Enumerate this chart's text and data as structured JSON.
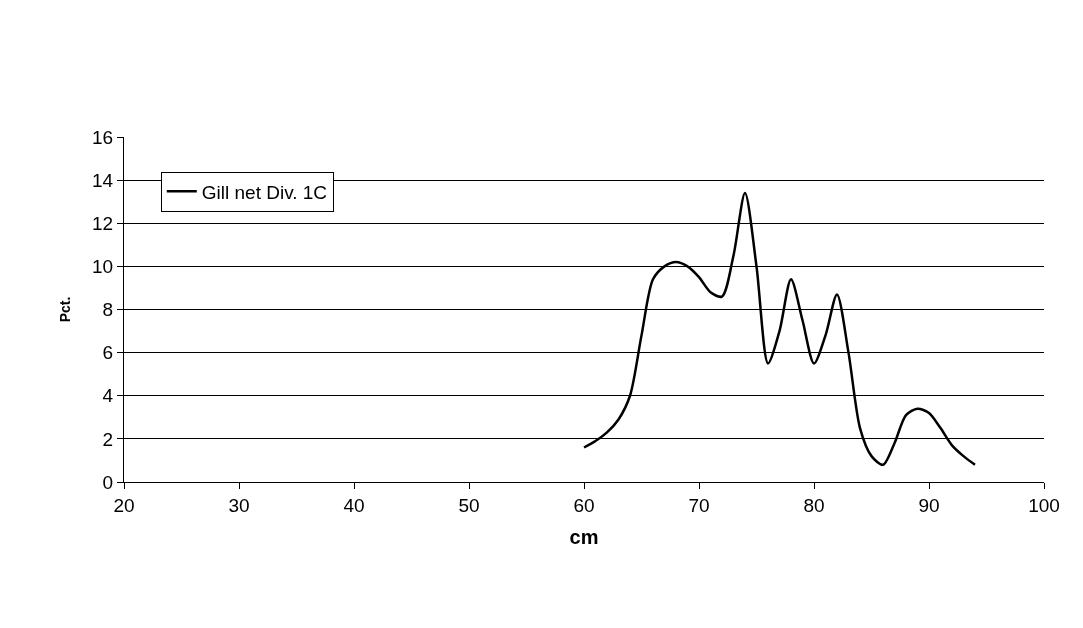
{
  "chart_data": {
    "type": "line",
    "xlabel": "cm",
    "ylabel": "Pct.",
    "x": [
      60,
      61,
      62,
      63,
      64,
      65,
      66,
      67,
      68,
      69,
      70,
      71,
      72,
      73,
      74,
      75,
      76,
      77,
      78,
      79,
      80,
      81,
      82,
      83,
      84,
      85,
      86,
      87,
      88,
      89,
      90,
      91,
      92,
      93,
      94
    ],
    "series": [
      {
        "name": "Gill net Div. 1C",
        "color": "#000000",
        "values": [
          1.6,
          1.9,
          2.3,
          2.9,
          4.0,
          6.8,
          9.4,
          10.0,
          10.2,
          10.0,
          9.5,
          8.8,
          8.6,
          10.5,
          13.4,
          10.0,
          5.5,
          7.0,
          9.4,
          7.5,
          5.5,
          6.8,
          8.7,
          6.0,
          2.5,
          1.2,
          0.8,
          1.8,
          3.1,
          3.4,
          3.2,
          2.5,
          1.7,
          1.2,
          0.8
        ]
      }
    ],
    "xlim": [
      20,
      100
    ],
    "xticks": [
      20,
      30,
      40,
      50,
      60,
      70,
      80,
      90,
      100
    ],
    "ylim": [
      0,
      16
    ],
    "yticks": [
      0,
      2,
      4,
      6,
      8,
      10,
      12,
      14,
      16
    ],
    "grid": "y",
    "legend": "top left",
    "marker": "none",
    "line_style": "solid"
  }
}
